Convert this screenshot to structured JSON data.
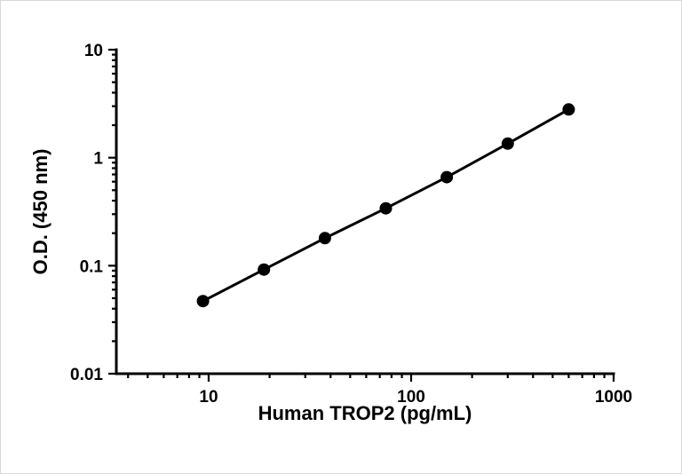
{
  "chart_data": {
    "type": "scatter",
    "subtype": "log-log standard curve with connecting line",
    "x": [
      9.375,
      18.75,
      37.5,
      75,
      150,
      300,
      600
    ],
    "y": [
      0.047,
      0.092,
      0.18,
      0.34,
      0.66,
      1.35,
      2.8
    ],
    "title": "",
    "xlabel": "Human TROP2 (pg/mL)",
    "ylabel": "O.D. (450 nm)",
    "xscale": "log",
    "yscale": "log",
    "xlim": [
      3.5,
      1000
    ],
    "ylim": [
      0.01,
      10
    ],
    "x_major_ticks": [
      10,
      100,
      1000
    ],
    "x_tick_labels": [
      "10",
      "100",
      "1000"
    ],
    "y_major_ticks": [
      0.01,
      0.1,
      1,
      10
    ],
    "y_tick_labels": [
      "0.01",
      "0.1",
      "1",
      "10"
    ],
    "grid": false,
    "legend": null,
    "marker_color": "#000000",
    "line_color": "#000000",
    "axis_color": "#000000",
    "background_color": "#ffffff"
  }
}
